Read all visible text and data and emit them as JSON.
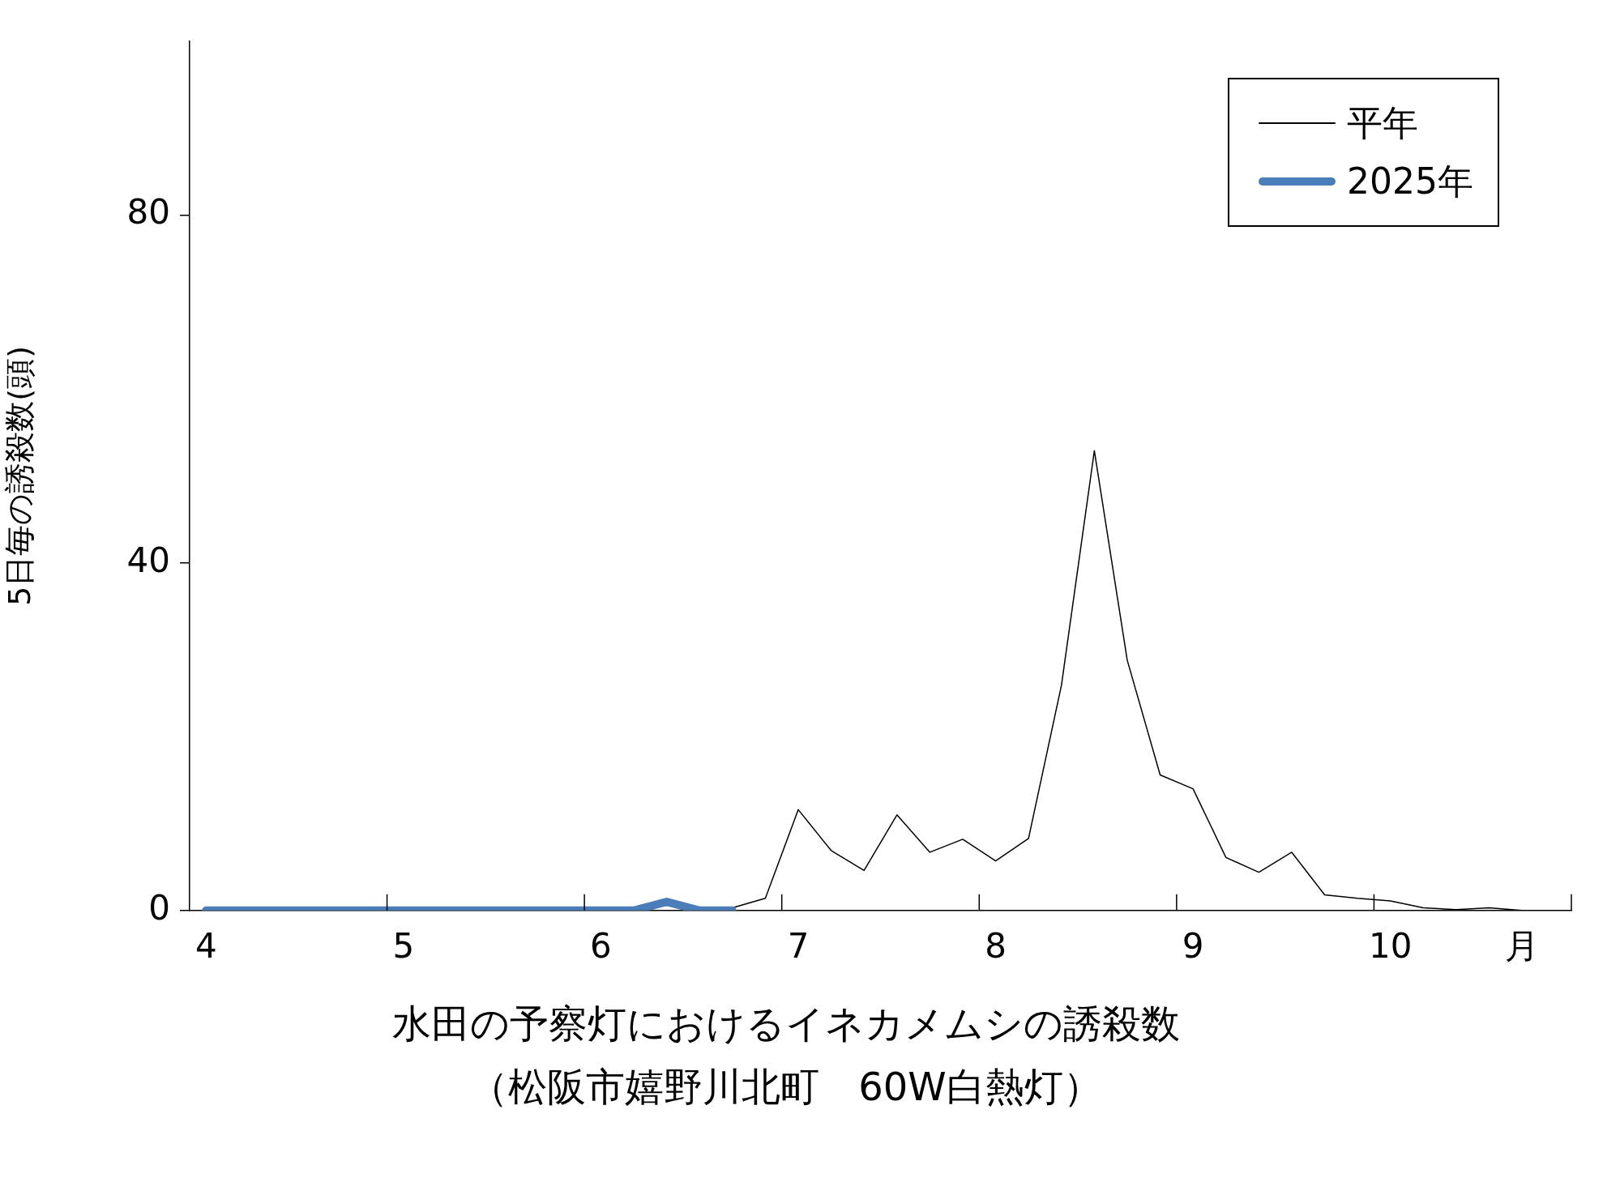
{
  "chart_data": {
    "type": "line",
    "title": "水田の予察灯におけるイネカメムシの誘殺数",
    "subtitle": "（松阪市嬉野川北町　60W白熱灯）",
    "ylabel": "5日毎の誘殺数(頭)",
    "categories": [
      "4",
      null,
      null,
      null,
      null,
      null,
      "5",
      null,
      null,
      null,
      null,
      null,
      "6",
      null,
      null,
      null,
      null,
      null,
      "7",
      null,
      null,
      null,
      null,
      null,
      "8",
      null,
      null,
      null,
      null,
      null,
      "9",
      null,
      null,
      null,
      null,
      null,
      "10",
      null,
      null,
      null,
      "月",
      null
    ],
    "series": [
      {
        "name": "平年",
        "color": "#000000",
        "values": [
          0,
          0,
          0,
          0,
          0,
          0,
          0,
          0,
          0,
          0,
          0,
          0,
          0,
          0,
          0,
          0,
          0.3,
          1.4,
          11.6,
          6.9,
          4.6,
          11.0,
          6.7,
          8.2,
          5.7,
          8.3,
          25.9,
          52.9,
          28.8,
          15.6,
          14.0,
          6.1,
          4.4,
          6.7,
          1.8,
          1.4,
          1.1,
          0.3,
          0.1,
          0.3,
          0,
          0
        ]
      },
      {
        "name": "2025年",
        "color": "#4a7ebb",
        "values": [
          0,
          0,
          0,
          0,
          0,
          0,
          0,
          0,
          0,
          0,
          0,
          0,
          0,
          0,
          1,
          0,
          0,
          null,
          null,
          null,
          null,
          null,
          null,
          null,
          null,
          null,
          null,
          null,
          null,
          null,
          null,
          null,
          null,
          null,
          null,
          null,
          null,
          null,
          null,
          null,
          null,
          null
        ]
      }
    ],
    "ylim": [
      0,
      100
    ],
    "yticks": [
      0,
      40,
      80
    ],
    "legend": "top right",
    "grid": false
  }
}
